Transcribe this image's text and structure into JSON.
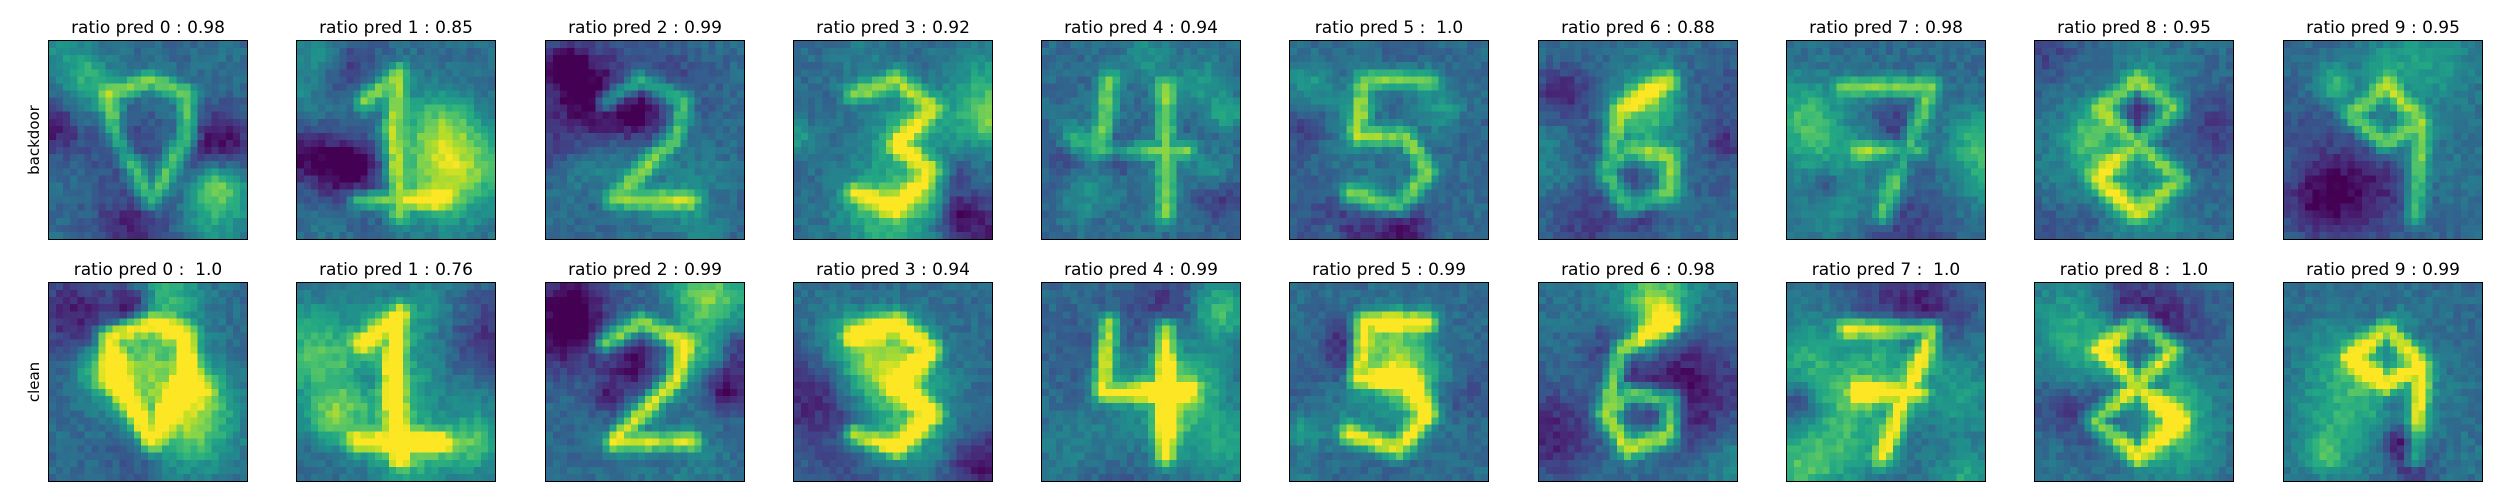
{
  "figure": {
    "colormap": "viridis",
    "rows": [
      {
        "label": "backdoor",
        "panels": [
          {
            "title": "ratio pred 0 : 0.98",
            "predicted_class": 0,
            "ratio": 0.98
          },
          {
            "title": "ratio pred 1 : 0.85",
            "predicted_class": 1,
            "ratio": 0.85
          },
          {
            "title": "ratio pred 2 : 0.99",
            "predicted_class": 2,
            "ratio": 0.99
          },
          {
            "title": "ratio pred 3 : 0.92",
            "predicted_class": 3,
            "ratio": 0.92
          },
          {
            "title": "ratio pred 4 : 0.94",
            "predicted_class": 4,
            "ratio": 0.94
          },
          {
            "title": "ratio pred 5 :  1.0",
            "predicted_class": 5,
            "ratio": 1.0
          },
          {
            "title": "ratio pred 6 : 0.88",
            "predicted_class": 6,
            "ratio": 0.88
          },
          {
            "title": "ratio pred 7 : 0.98",
            "predicted_class": 7,
            "ratio": 0.98
          },
          {
            "title": "ratio pred 8 : 0.95",
            "predicted_class": 8,
            "ratio": 0.95
          },
          {
            "title": "ratio pred 9 : 0.95",
            "predicted_class": 9,
            "ratio": 0.95
          }
        ]
      },
      {
        "label": "clean",
        "panels": [
          {
            "title": "ratio pred 0 :  1.0",
            "predicted_class": 0,
            "ratio": 1.0
          },
          {
            "title": "ratio pred 1 : 0.76",
            "predicted_class": 1,
            "ratio": 0.76
          },
          {
            "title": "ratio pred 2 : 0.99",
            "predicted_class": 2,
            "ratio": 0.99
          },
          {
            "title": "ratio pred 3 : 0.94",
            "predicted_class": 3,
            "ratio": 0.94
          },
          {
            "title": "ratio pred 4 : 0.99",
            "predicted_class": 4,
            "ratio": 0.99
          },
          {
            "title": "ratio pred 5 : 0.99",
            "predicted_class": 5,
            "ratio": 0.99
          },
          {
            "title": "ratio pred 6 : 0.98",
            "predicted_class": 6,
            "ratio": 0.98
          },
          {
            "title": "ratio pred 7 :  1.0",
            "predicted_class": 7,
            "ratio": 1.0
          },
          {
            "title": "ratio pred 8 :  1.0",
            "predicted_class": 8,
            "ratio": 1.0
          },
          {
            "title": "ratio pred 9 : 0.99",
            "predicted_class": 9,
            "ratio": 0.99
          }
        ]
      }
    ]
  }
}
